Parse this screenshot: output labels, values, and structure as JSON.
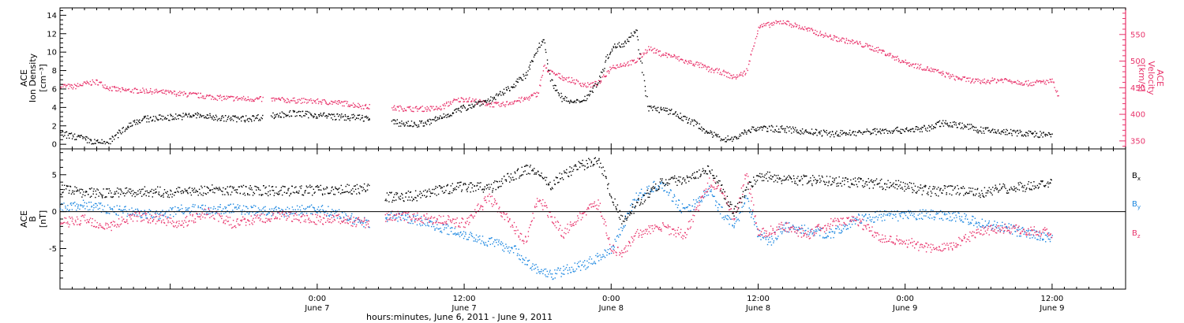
{
  "colors": {
    "black": "#000000",
    "pink": "#e8336b",
    "blue": "#1a86e0"
  },
  "x_axis": {
    "title": "hours:minutes,  June  6, 2011 - June  9, 2011",
    "range_hours": [
      -21,
      66
    ],
    "ticks": [
      {
        "hour": 0,
        "time": "0:00",
        "date": "June 7"
      },
      {
        "hour": 12,
        "time": "12:00",
        "date": "June 7"
      },
      {
        "hour": 24,
        "time": "0:00",
        "date": "June 8"
      },
      {
        "hour": 36,
        "time": "12:00",
        "date": "June 8"
      },
      {
        "hour": 48,
        "time": "0:00",
        "date": "June 9"
      },
      {
        "hour": 60,
        "time": "12:00",
        "date": "June 9"
      }
    ]
  },
  "chart_data": [
    {
      "type": "scatter",
      "panel": "top",
      "ylabel_left": [
        "ACE",
        "Ion Density",
        "[cm⁻³]"
      ],
      "ylabel_right": [
        "ACE",
        "Velocity",
        "[km/s]"
      ],
      "ylim_left": [
        -0.5,
        14.8
      ],
      "ylim_right": [
        335,
        600
      ],
      "yticks_left": [
        "0",
        "2",
        "4",
        "6",
        "8",
        "10",
        "12",
        "14"
      ],
      "yticks_right": [
        "350",
        "400",
        "450",
        "500",
        "550"
      ],
      "series": [
        {
          "axis": "left",
          "color": "#000000",
          "x": [
            -21,
            -19.5,
            -18,
            -17,
            -16,
            -15,
            -14,
            -12,
            -10,
            -8,
            -6,
            -4,
            -2,
            0,
            2,
            4,
            5.5,
            7,
            8,
            9,
            10.5,
            11,
            12,
            13,
            14,
            15,
            16,
            17,
            18,
            18.5,
            19,
            19.5,
            20,
            21,
            22,
            23,
            23.5,
            24,
            25,
            26,
            27,
            28,
            29,
            30,
            31,
            32,
            33,
            34,
            35,
            36,
            38,
            40,
            42,
            44,
            46,
            48,
            50,
            51,
            52,
            53,
            54,
            56,
            58,
            60
          ],
          "y": [
            1.2,
            0.8,
            0.2,
            0.3,
            1.5,
            2.5,
            2.8,
            3.0,
            3.2,
            2.9,
            2.8,
            3.1,
            3.4,
            3.2,
            3.0,
            2.9,
            2.5,
            2.3,
            2.2,
            2.4,
            3.2,
            3.5,
            4.0,
            4.5,
            4.8,
            5.5,
            6.5,
            7.5,
            10.5,
            11.5,
            7.0,
            6.0,
            5.0,
            4.5,
            5.2,
            7.0,
            9.0,
            10.5,
            11.0,
            12.5,
            4.0,
            3.8,
            3.5,
            2.8,
            2.2,
            1.2,
            0.7,
            0.6,
            1.5,
            1.8,
            1.7,
            1.4,
            1.2,
            1.3,
            1.5,
            1.6,
            1.8,
            2.4,
            2.2,
            2.0,
            1.6,
            1.4,
            1.2,
            1.0
          ]
        },
        {
          "axis": "right",
          "color": "#e8336b",
          "x": [
            -21,
            -20,
            -19,
            -18,
            -17,
            -16,
            -14,
            -12,
            -10,
            -8,
            -6,
            -4,
            -2,
            0,
            2,
            4,
            6,
            8,
            10,
            11,
            12,
            13,
            14,
            15,
            16,
            17,
            18,
            18.5,
            19,
            20,
            22,
            23,
            24,
            25,
            26,
            27,
            28,
            29,
            30,
            31,
            32,
            33,
            34,
            35,
            36,
            37,
            38,
            40,
            42,
            44,
            46,
            48,
            50,
            52,
            54,
            56,
            58,
            60,
            60.5
          ],
          "y": [
            455,
            452,
            458,
            462,
            450,
            446,
            445,
            441,
            437,
            432,
            430,
            429,
            427,
            425,
            422,
            415,
            413,
            411,
            412,
            425,
            430,
            425,
            420,
            418,
            425,
            430,
            440,
            490,
            480,
            470,
            455,
            460,
            490,
            495,
            500,
            525,
            515,
            510,
            500,
            495,
            485,
            480,
            470,
            480,
            565,
            570,
            575,
            560,
            545,
            535,
            520,
            498,
            485,
            470,
            462,
            466,
            459,
            463,
            433
          ]
        }
      ]
    },
    {
      "type": "scatter",
      "panel": "bottom",
      "ylabel_left": [
        "ACE",
        "B",
        "[nT]"
      ],
      "ylim": [
        -10.5,
        8.5
      ],
      "yticks": [
        "-5",
        "0",
        "5"
      ],
      "zero_line": true,
      "legend_placement": "right",
      "series": [
        {
          "name": "Bx",
          "color": "#000000",
          "x": [
            -21,
            -18,
            -15,
            -12,
            -9,
            -6,
            -3,
            0,
            2,
            4,
            5.5,
            8,
            10,
            12,
            14,
            16,
            17.5,
            19,
            20,
            21,
            22,
            23,
            24,
            25,
            26,
            28,
            30,
            32,
            33,
            34,
            35,
            36,
            38,
            40,
            42,
            44,
            46,
            48,
            50,
            52,
            54,
            56,
            58,
            60
          ],
          "y": [
            3,
            2.5,
            2.8,
            2.7,
            3,
            3,
            2.8,
            3,
            3.1,
            3.2,
            2,
            2.2,
            3,
            3.5,
            3.2,
            5,
            6,
            3.5,
            5,
            6,
            6.5,
            7,
            2,
            -1.5,
            1,
            4,
            4.5,
            6,
            3,
            0,
            3,
            5,
            4.5,
            4.3,
            4.2,
            4,
            3.8,
            3.5,
            2.8,
            3,
            2.5,
            3.2,
            3.5,
            3.8
          ]
        },
        {
          "name": "By",
          "color": "#1a86e0",
          "x": [
            -21,
            -19,
            -17,
            -15,
            -13,
            -11,
            -9,
            -7,
            -5,
            -3,
            0,
            2,
            4,
            6,
            8,
            10,
            12,
            14,
            16,
            17.5,
            19,
            20,
            22,
            24,
            26,
            28,
            30,
            32,
            33,
            34,
            35,
            36,
            37,
            38,
            40,
            42,
            44,
            46,
            48,
            50,
            52,
            54,
            56,
            58,
            60
          ],
          "y": [
            0.5,
            1,
            0.3,
            0,
            -0.5,
            0.5,
            0.3,
            0.5,
            0.2,
            0,
            0.5,
            -0.5,
            -1.5,
            -0.5,
            -1,
            -2,
            -3,
            -4,
            -5,
            -7.5,
            -8.5,
            -8,
            -7,
            -5,
            2,
            4,
            0,
            3,
            0,
            -2,
            2,
            -3,
            -4,
            -2,
            -2.5,
            -3,
            -1,
            -0.5,
            -0.5,
            -0.3,
            -0.5,
            -1.5,
            -2,
            -3,
            -3.5
          ]
        },
        {
          "name": "Bz",
          "color": "#e8336b",
          "x": [
            -21,
            -19,
            -17,
            -15,
            -13,
            -11,
            -9,
            -7,
            -5,
            -3,
            0,
            2,
            4,
            6,
            8,
            10,
            12,
            14,
            16,
            17,
            18,
            20,
            22,
            23,
            24,
            25,
            26,
            28,
            30,
            32,
            33,
            34,
            35,
            36,
            38,
            40,
            42,
            44,
            46,
            48,
            50,
            52,
            54,
            56,
            58,
            60
          ],
          "y": [
            -1.5,
            -1,
            -2,
            -0.5,
            -1,
            -1.5,
            0,
            -1.5,
            -1,
            -0.5,
            -1,
            -1,
            -1.5,
            -0.5,
            -0.8,
            -1,
            -1.5,
            2,
            -2,
            -4,
            2,
            -3,
            0.5,
            1,
            -5,
            -5.5,
            -3,
            -2,
            -3,
            4,
            3,
            -1,
            5,
            -3,
            -2,
            -3,
            -1.5,
            -1,
            -3.5,
            -4,
            -5,
            -4.5,
            -2.5,
            -2.2,
            -2.5,
            -2.8
          ]
        }
      ]
    }
  ]
}
